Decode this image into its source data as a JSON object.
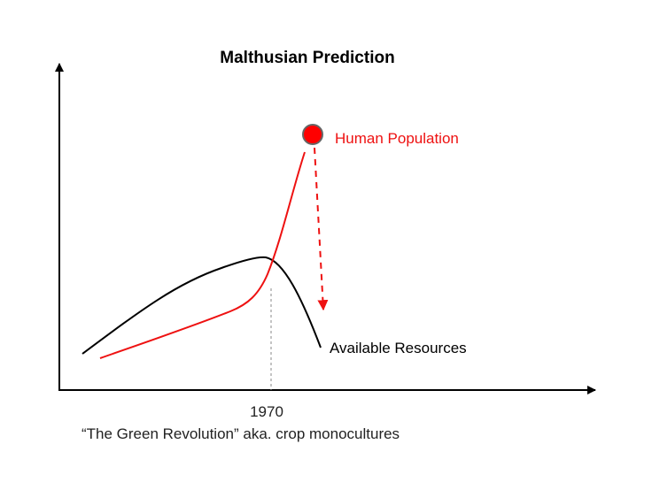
{
  "title": "Malthusian Prediction",
  "series": {
    "population": {
      "label": "Human Population",
      "color": "#ee1111"
    },
    "resources": {
      "label": "Available Resources",
      "color": "#000000"
    }
  },
  "x_marker": {
    "year": "1970",
    "caption": "“The Green Revolution” aka. crop monocultures"
  },
  "colors": {
    "axis": "#000000",
    "guide": "#888888",
    "marker_fill": "#ff0000",
    "marker_stroke": "#666666"
  }
}
